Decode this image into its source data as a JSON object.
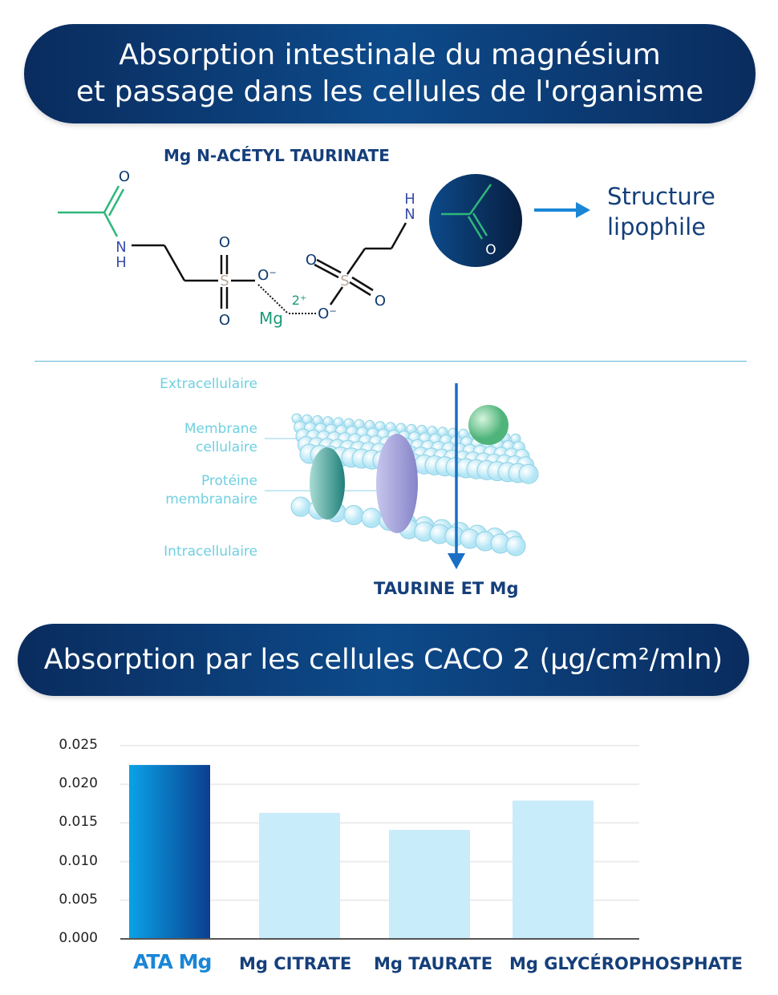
{
  "header": {
    "line1": "Absorption intestinale du magnésium",
    "line2": "et passage dans les cellules de l'organisme"
  },
  "molecule": {
    "name": "Mg N-ACÉTYL TAURINATE",
    "atoms": {
      "O": "O",
      "N": "N",
      "H": "H",
      "S": "S",
      "O_minus": "O⁻",
      "Mg": "Mg",
      "charge": "2⁺"
    },
    "result_label": "Structure lipophile",
    "colors": {
      "acetyl": "#2fb77a",
      "nitrogen": "#3a4fa8",
      "oxygen": "#0d3a6e",
      "sulfur": "#b8a89a"
    }
  },
  "membrane": {
    "labels": [
      "Extracellulaire",
      "Membrane cellulaire",
      "Protéine membranaire",
      "Intracellulaire"
    ],
    "arrow_label": "TAURINE ET Mg"
  },
  "chart_banner": {
    "title": "Absorption par les cellules CACO 2 (μg/cm²/mln)"
  },
  "chart_data": {
    "type": "bar",
    "title": "Absorption par les cellules CACO 2 (μg/cm²/mln)",
    "categories": [
      "ATA Mg",
      "Mg CITRATE",
      "Mg TAURATE",
      "Mg GLYCÉROPHOSPHATE"
    ],
    "values": [
      0.0225,
      0.0163,
      0.0141,
      0.0179
    ],
    "ylim": [
      0,
      0.025
    ],
    "yticks": [
      "0.000",
      "0.005",
      "0.010",
      "0.015",
      "0.020",
      "0.025"
    ],
    "grid": true,
    "colors": {
      "highlight": "#1a86d6",
      "others": "#c8ecfa"
    }
  }
}
